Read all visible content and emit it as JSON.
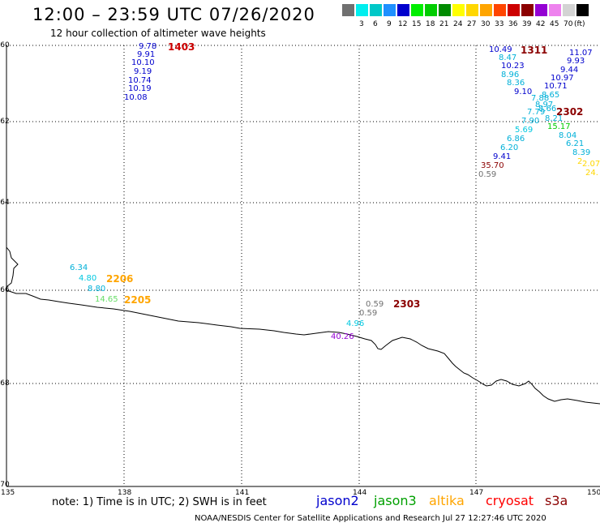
{
  "header": {
    "title": "12:00 – 23:59 UTC 07/26/2020",
    "subtitle": "12 hour collection of altimeter wave heights"
  },
  "legend": {
    "unit": "(ft)",
    "entries": [
      {
        "color": "#707070",
        "label": ""
      },
      {
        "color": "#00eeee",
        "label": "3"
      },
      {
        "color": "#00c8c8",
        "label": "6"
      },
      {
        "color": "#1e90ff",
        "label": "9"
      },
      {
        "color": "#0000cd",
        "label": "12"
      },
      {
        "color": "#00ee00",
        "label": "15"
      },
      {
        "color": "#00cd00",
        "label": "18"
      },
      {
        "color": "#008b00",
        "label": "21"
      },
      {
        "color": "#ffff00",
        "label": "24"
      },
      {
        "color": "#ffd700",
        "label": "27"
      },
      {
        "color": "#ffa500",
        "label": "30"
      },
      {
        "color": "#ff4500",
        "label": "33"
      },
      {
        "color": "#cd0000",
        "label": "36"
      },
      {
        "color": "#8b0000",
        "label": "39"
      },
      {
        "color": "#9400d3",
        "label": "42"
      },
      {
        "color": "#ee82ee",
        "label": "45"
      },
      {
        "color": "#d3d3d3",
        "label": "70"
      },
      {
        "color": "#000000",
        "label": ""
      }
    ]
  },
  "map": {
    "lat_labels": [
      "-60",
      "-62",
      "-64",
      "-66",
      "-68",
      "-70"
    ],
    "lon_labels": [
      "135",
      "138",
      "141",
      "144",
      "147",
      "150"
    ]
  },
  "observations": [
    {
      "text": "9.78",
      "color": "#0000cd"
    },
    {
      "text": "9.91",
      "color": "#0000cd"
    },
    {
      "text": "10.10",
      "color": "#0000cd"
    },
    {
      "text": "9.19",
      "color": "#0000cd"
    },
    {
      "text": "10.74",
      "color": "#0000cd"
    },
    {
      "text": "10.19",
      "color": "#0000cd"
    },
    {
      "text": "10.08",
      "color": "#0000cd"
    },
    {
      "text": "10.49",
      "color": "#0000cd"
    },
    {
      "text": "8.47",
      "color": "#00b0d8"
    },
    {
      "text": "10.23",
      "color": "#0000cd"
    },
    {
      "text": "8.96",
      "color": "#00b0d8"
    },
    {
      "text": "8.36",
      "color": "#00b0d8"
    },
    {
      "text": "9.10",
      "color": "#0000cd"
    },
    {
      "text": "7.88",
      "color": "#00b0d8"
    },
    {
      "text": "8.97",
      "color": "#00b0d8"
    },
    {
      "text": "7.79",
      "color": "#00b0d8"
    },
    {
      "text": "7.90",
      "color": "#00b0d8"
    },
    {
      "text": "5.69",
      "color": "#00c8e0"
    },
    {
      "text": "6.86",
      "color": "#00b0d8"
    },
    {
      "text": "6.20",
      "color": "#00b0d8"
    },
    {
      "text": "9.41",
      "color": "#0000cd"
    },
    {
      "text": "35.70",
      "color": "#8b0000"
    },
    {
      "text": "0.59",
      "color": "#707070"
    },
    {
      "text": "11.07",
      "color": "#0000cd"
    },
    {
      "text": "9.93",
      "color": "#0000cd"
    },
    {
      "text": "9.44",
      "color": "#0000cd"
    },
    {
      "text": "10.97",
      "color": "#0000cd"
    },
    {
      "text": "10.71",
      "color": "#0000cd"
    },
    {
      "text": "8.65",
      "color": "#00b0d8"
    },
    {
      "text": "8.66",
      "color": "#00b0d8"
    },
    {
      "text": "8.21",
      "color": "#00b0d8"
    },
    {
      "text": "15.17",
      "color": "#00cd00"
    },
    {
      "text": "8.04",
      "color": "#00b0d8"
    },
    {
      "text": "6.21",
      "color": "#00b0d8"
    },
    {
      "text": "8.39",
      "color": "#00b0d8"
    },
    {
      "text": "2",
      "color": "#ffd700"
    },
    {
      "text": "2.07",
      "color": "#ffd700"
    },
    {
      "text": "24.",
      "color": "#ffd700"
    },
    {
      "text": "6.34",
      "color": "#00b0d8"
    },
    {
      "text": "4.80",
      "color": "#00c8e0"
    },
    {
      "text": "8.80",
      "color": "#00b0d8"
    },
    {
      "text": "14.65",
      "color": "#66dd66"
    },
    {
      "text": "0.59",
      "color": "#707070"
    },
    {
      "text": "0.59",
      "color": "#707070"
    },
    {
      "text": "4.96",
      "color": "#00c8e0"
    },
    {
      "text": "40.26",
      "color": "#9400d3"
    }
  ],
  "passes": [
    {
      "text": "1403",
      "color": "#cd0000"
    },
    {
      "text": "1311",
      "color": "#8b0000"
    },
    {
      "text": "2302",
      "color": "#8b0000"
    },
    {
      "text": "2206",
      "color": "#ffa500"
    },
    {
      "text": "2205",
      "color": "#ffa500"
    },
    {
      "text": "2303",
      "color": "#8b0000"
    }
  ],
  "footer": {
    "note": "note:  1) Time is in UTC;  2) SWH is in feet",
    "satellites": [
      {
        "name": "jason2",
        "color": "#0000cd"
      },
      {
        "name": "jason3",
        "color": "#00a000"
      },
      {
        "name": "altika",
        "color": "#ffa500"
      },
      {
        "name": "cryosat",
        "color": "#ff0000"
      },
      {
        "name": "s3a",
        "color": "#8b0000"
      }
    ],
    "credit": "NOAA/NESDIS Center for Satellite Applications and Research    Jul 27 12:27:46 UTC 2020"
  }
}
